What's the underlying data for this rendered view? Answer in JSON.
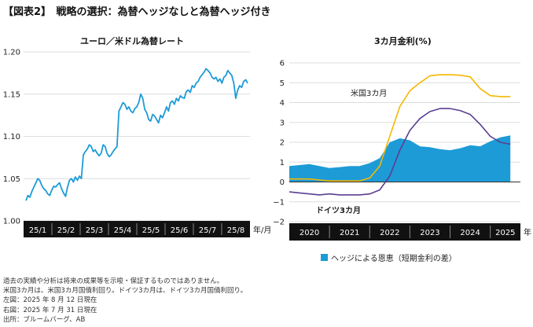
{
  "title": "【図表2】　戦略の選択：為替ヘッジなしと為替ヘッジ付き",
  "colors": {
    "line_fx": "#1d9bd7",
    "area_hedge": "#1d9bd7",
    "us": "#f5b800",
    "de": "#5b3f91",
    "bar": "#111111",
    "grid": "#dddddd"
  },
  "chart_data": [
    {
      "type": "line",
      "title": "ユーロ／米ドル為替レート",
      "xunit": "年/月",
      "categories": [
        "25/1",
        "25/2",
        "25/3",
        "25/4",
        "25/5",
        "25/6",
        "25/7",
        "25/8"
      ],
      "yticks": [
        "1.00",
        "1.05",
        "1.10",
        "1.15",
        "1.20"
      ],
      "ylim": [
        1.0,
        1.2
      ],
      "grid": true,
      "x": [
        0,
        2,
        4,
        6,
        8,
        10,
        12,
        14,
        16,
        18,
        20,
        22,
        24,
        26,
        28,
        30,
        32,
        34,
        36,
        38,
        40,
        42,
        44,
        46,
        48,
        50,
        52,
        54,
        56,
        58,
        60,
        62,
        64,
        66,
        68,
        70,
        72,
        74,
        76,
        78,
        80,
        82,
        84,
        86,
        88,
        90,
        92,
        94,
        96,
        98,
        100,
        102,
        104,
        106,
        108,
        110,
        112,
        114,
        116,
        118,
        120,
        122,
        124,
        126,
        128,
        130,
        132,
        134,
        136,
        138,
        140,
        142,
        144,
        146,
        148,
        150,
        152,
        154,
        156,
        158,
        160,
        162,
        164,
        166,
        168,
        170,
        172,
        174,
        176,
        178,
        180,
        182,
        184,
        186,
        188,
        190,
        192,
        194,
        196,
        198,
        200,
        202,
        204,
        206,
        208,
        210,
        212,
        214,
        216,
        218,
        220,
        222,
        224
      ],
      "series": [
        {
          "values": [
            1.024,
            1.03,
            1.028,
            1.035,
            1.04,
            1.045,
            1.05,
            1.048,
            1.042,
            1.038,
            1.036,
            1.032,
            1.03,
            1.036,
            1.041,
            1.04,
            1.043,
            1.045,
            1.038,
            1.033,
            1.029,
            1.04,
            1.048,
            1.05,
            1.046,
            1.052,
            1.048,
            1.053,
            1.05,
            1.078,
            1.082,
            1.085,
            1.09,
            1.088,
            1.082,
            1.084,
            1.08,
            1.077,
            1.08,
            1.09,
            1.088,
            1.08,
            1.076,
            1.078,
            1.082,
            1.085,
            1.088,
            1.13,
            1.135,
            1.14,
            1.138,
            1.132,
            1.135,
            1.13,
            1.128,
            1.133,
            1.135,
            1.14,
            1.15,
            1.145,
            1.132,
            1.128,
            1.12,
            1.118,
            1.126,
            1.124,
            1.12,
            1.116,
            1.125,
            1.122,
            1.128,
            1.135,
            1.13,
            1.14,
            1.142,
            1.138,
            1.145,
            1.142,
            1.148,
            1.146,
            1.145,
            1.153,
            1.155,
            1.152,
            1.16,
            1.158,
            1.163,
            1.165,
            1.17,
            1.173,
            1.176,
            1.18,
            1.178,
            1.175,
            1.17,
            1.168,
            1.17,
            1.165,
            1.168,
            1.163,
            1.17,
            1.172,
            1.178,
            1.175,
            1.172,
            1.163,
            1.145,
            1.155,
            1.16,
            1.158,
            1.165,
            1.167,
            1.163
          ]
        }
      ]
    },
    {
      "type": "line",
      "title": "3カ月金利(%)",
      "xunit": "年",
      "categories": [
        "2020",
        "2021",
        "2022",
        "2023",
        "2024",
        "2025"
      ],
      "yticks": [
        "−2",
        "−1",
        "0",
        "1",
        "2",
        "3",
        "4",
        "5",
        "6"
      ],
      "ylim": [
        -2,
        6
      ],
      "grid": true,
      "x": [
        2020,
        2020.25,
        2020.5,
        2020.75,
        2021,
        2021.25,
        2021.5,
        2021.75,
        2022,
        2022.25,
        2022.5,
        2022.75,
        2023,
        2023.25,
        2023.5,
        2023.75,
        2024,
        2024.25,
        2024.5,
        2024.75,
        2025,
        2025.25,
        2025.5
      ],
      "series": [
        {
          "name": "米国3カ月",
          "values": [
            0.15,
            0.15,
            0.15,
            0.1,
            0.05,
            0.05,
            0.05,
            0.05,
            0.2,
            0.8,
            2.3,
            3.8,
            4.6,
            5.0,
            5.35,
            5.4,
            5.4,
            5.38,
            5.3,
            4.7,
            4.35,
            4.3,
            4.3
          ]
        },
        {
          "name": "ドイツ3カ月",
          "values": [
            -0.5,
            -0.55,
            -0.6,
            -0.65,
            -0.6,
            -0.65,
            -0.65,
            -0.65,
            -0.6,
            -0.4,
            0.3,
            1.6,
            2.6,
            3.2,
            3.55,
            3.7,
            3.7,
            3.6,
            3.4,
            2.9,
            2.3,
            2.0,
            1.9
          ]
        },
        {
          "name": "ヘッジによる恩恵（短期金利の差）",
          "values": [
            0.8,
            0.85,
            0.9,
            0.8,
            0.7,
            0.75,
            0.8,
            0.8,
            0.95,
            1.2,
            2.0,
            2.2,
            2.1,
            1.8,
            1.75,
            1.65,
            1.6,
            1.7,
            1.85,
            1.8,
            2.05,
            2.25,
            2.35
          ]
        }
      ]
    }
  ],
  "left_chart": {
    "title": "ユーロ／米ドル為替レート",
    "xunit": "年/月"
  },
  "right_chart": {
    "title": "3カ月金利(%)",
    "xunit": "年",
    "label_us": "米国3カ月",
    "label_de": "ドイツ3カ月"
  },
  "legend": {
    "label": "ヘッジによる恩恵（短期金利の差）"
  },
  "notes": [
    "過去の実績や分析は将来の成果等を示唆・保証するものではありません。",
    "米国3カ月は、米国3カ月国債利回り。ドイツ3カ月は、ドイツ3カ月国債利回り。",
    "左図：2025 年 8 月 12 日現在",
    "右図：2025 年 7 月 31 日現在",
    "出所：ブルームバーグ、AB"
  ]
}
